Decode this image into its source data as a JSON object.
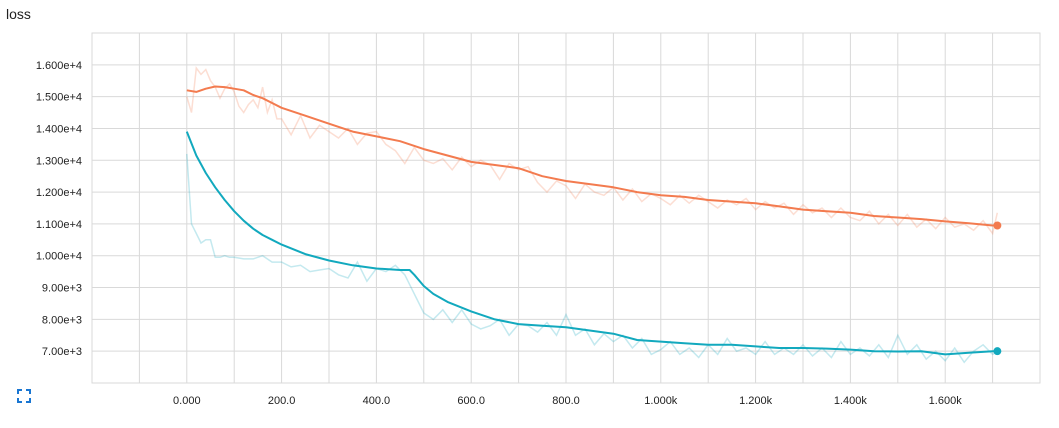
{
  "card": {
    "title": "loss"
  },
  "icons": {
    "expand": "fullscreen-expand-icon"
  },
  "colors": {
    "train": "#f37b4f",
    "val": "#12a9be",
    "grid": "#d9d9d9"
  },
  "chart_data": {
    "type": "line",
    "title": "loss",
    "xlabel": "",
    "ylabel": "",
    "xlim": [
      -200,
      1800
    ],
    "ylim": [
      6000,
      17000
    ],
    "x_ticks": [
      0,
      200,
      400,
      600,
      800,
      1000,
      1200,
      1400,
      1600
    ],
    "x_tick_labels": [
      "0.000",
      "200.0",
      "400.0",
      "600.0",
      "800.0",
      "1.000k",
      "1.200k",
      "1.400k",
      "1.600k"
    ],
    "y_ticks": [
      7000,
      8000,
      9000,
      10000,
      11000,
      12000,
      13000,
      14000,
      15000,
      16000
    ],
    "y_tick_labels": [
      "7.00e+3",
      "8.00e+3",
      "9.00e+3",
      "1.000e+4",
      "1.100e+4",
      "1.200e+4",
      "1.300e+4",
      "1.400e+4",
      "1.500e+4",
      "1.600e+4"
    ],
    "grid": true,
    "legend": "none",
    "series": [
      {
        "color": "#f37b4f",
        "smoothed": {
          "x": [
            0,
            20,
            40,
            60,
            80,
            100,
            120,
            140,
            160,
            180,
            200,
            250,
            300,
            350,
            400,
            450,
            500,
            550,
            600,
            650,
            700,
            750,
            800,
            850,
            900,
            950,
            1000,
            1050,
            1100,
            1150,
            1200,
            1250,
            1300,
            1350,
            1400,
            1450,
            1500,
            1550,
            1600,
            1650,
            1700,
            1710
          ],
          "y": [
            15200,
            15150,
            15250,
            15320,
            15300,
            15250,
            15200,
            15050,
            14950,
            14800,
            14650,
            14400,
            14150,
            13900,
            13750,
            13600,
            13350,
            13150,
            12950,
            12850,
            12750,
            12500,
            12350,
            12250,
            12150,
            12000,
            11900,
            11850,
            11750,
            11700,
            11650,
            11550,
            11450,
            11400,
            11350,
            11250,
            11200,
            11150,
            11080,
            11020,
            10950,
            10950
          ]
        },
        "raw": {
          "x": [
            0,
            10,
            20,
            30,
            40,
            50,
            60,
            70,
            80,
            90,
            100,
            110,
            120,
            130,
            140,
            150,
            160,
            170,
            180,
            190,
            200,
            220,
            240,
            260,
            280,
            300,
            320,
            340,
            360,
            380,
            400,
            420,
            440,
            460,
            480,
            500,
            520,
            540,
            560,
            580,
            600,
            620,
            640,
            660,
            680,
            700,
            720,
            740,
            760,
            780,
            800,
            820,
            840,
            860,
            880,
            900,
            920,
            940,
            960,
            980,
            1000,
            1020,
            1040,
            1060,
            1080,
            1100,
            1120,
            1140,
            1160,
            1180,
            1200,
            1220,
            1240,
            1260,
            1280,
            1300,
            1320,
            1340,
            1360,
            1380,
            1400,
            1420,
            1440,
            1460,
            1480,
            1500,
            1520,
            1540,
            1560,
            1580,
            1600,
            1620,
            1640,
            1660,
            1680,
            1700,
            1710
          ],
          "y": [
            15000,
            14500,
            15900,
            15700,
            15850,
            15500,
            15300,
            14950,
            15250,
            15400,
            15150,
            14700,
            14500,
            14750,
            14900,
            14650,
            15300,
            14500,
            14900,
            14300,
            14300,
            13800,
            14400,
            13700,
            14100,
            13900,
            13700,
            14000,
            13500,
            13850,
            13900,
            13500,
            13300,
            12900,
            13400,
            13000,
            12900,
            13050,
            12700,
            13100,
            12800,
            13000,
            12850,
            12400,
            12900,
            12700,
            12800,
            12300,
            12000,
            12350,
            12200,
            11800,
            12250,
            12000,
            11900,
            12150,
            11750,
            12100,
            11700,
            11950,
            11800,
            11600,
            11900,
            11650,
            11900,
            11700,
            11500,
            11750,
            11600,
            11800,
            11450,
            11700,
            11500,
            11650,
            11300,
            11600,
            11350,
            11500,
            11200,
            11500,
            11200,
            11100,
            11400,
            11000,
            11300,
            10950,
            11300,
            10900,
            11150,
            10850,
            11200,
            10900,
            11000,
            10800,
            11100,
            10700,
            11350
          ]
        }
      },
      {
        "color": "#12a9be",
        "smoothed": {
          "x": [
            0,
            20,
            40,
            60,
            80,
            100,
            120,
            140,
            160,
            180,
            200,
            250,
            300,
            350,
            400,
            450,
            470,
            480,
            500,
            520,
            550,
            600,
            650,
            700,
            750,
            800,
            850,
            900,
            950,
            1000,
            1050,
            1100,
            1150,
            1200,
            1250,
            1300,
            1350,
            1400,
            1450,
            1500,
            1550,
            1600,
            1650,
            1700,
            1710
          ],
          "y": [
            13900,
            13150,
            12600,
            12150,
            11750,
            11400,
            11100,
            10850,
            10650,
            10500,
            10350,
            10050,
            9850,
            9700,
            9600,
            9550,
            9550,
            9400,
            9050,
            8800,
            8550,
            8250,
            8000,
            7850,
            7800,
            7750,
            7650,
            7550,
            7350,
            7300,
            7250,
            7200,
            7200,
            7150,
            7100,
            7100,
            7080,
            7050,
            7000,
            6990,
            7000,
            6900,
            6950,
            7000,
            7000
          ]
        },
        "raw": {
          "x": [
            0,
            10,
            20,
            30,
            40,
            50,
            60,
            70,
            80,
            90,
            100,
            120,
            140,
            160,
            180,
            200,
            220,
            240,
            260,
            280,
            300,
            320,
            340,
            360,
            380,
            400,
            420,
            440,
            460,
            480,
            500,
            520,
            540,
            560,
            580,
            600,
            620,
            640,
            660,
            680,
            700,
            720,
            740,
            760,
            780,
            800,
            820,
            840,
            860,
            880,
            900,
            920,
            940,
            960,
            980,
            1000,
            1020,
            1040,
            1060,
            1080,
            1100,
            1120,
            1140,
            1160,
            1180,
            1200,
            1220,
            1240,
            1260,
            1280,
            1300,
            1320,
            1340,
            1360,
            1380,
            1400,
            1420,
            1440,
            1460,
            1480,
            1500,
            1520,
            1540,
            1560,
            1580,
            1600,
            1620,
            1640,
            1660,
            1680,
            1700,
            1710
          ],
          "y": [
            13200,
            11000,
            10700,
            10400,
            10500,
            10500,
            9950,
            9950,
            10000,
            9950,
            9950,
            9900,
            9900,
            10000,
            9800,
            9800,
            9650,
            9700,
            9500,
            9550,
            9600,
            9400,
            9300,
            9800,
            9200,
            9600,
            9500,
            9700,
            9400,
            8800,
            8200,
            8000,
            8300,
            7900,
            8300,
            7850,
            7700,
            7800,
            8000,
            7500,
            7850,
            7800,
            7600,
            7900,
            7500,
            8150,
            7500,
            7700,
            7200,
            7550,
            7300,
            7500,
            7100,
            7400,
            6900,
            7050,
            7300,
            6900,
            7100,
            6800,
            7200,
            6900,
            7400,
            7000,
            7100,
            6900,
            7300,
            6900,
            7100,
            6900,
            7200,
            6850,
            7100,
            6800,
            7300,
            6900,
            7100,
            6850,
            7200,
            6800,
            7500,
            6900,
            7200,
            6750,
            7000,
            6700,
            7100,
            6650,
            7000,
            7200,
            6900,
            7000
          ]
        }
      }
    ]
  }
}
